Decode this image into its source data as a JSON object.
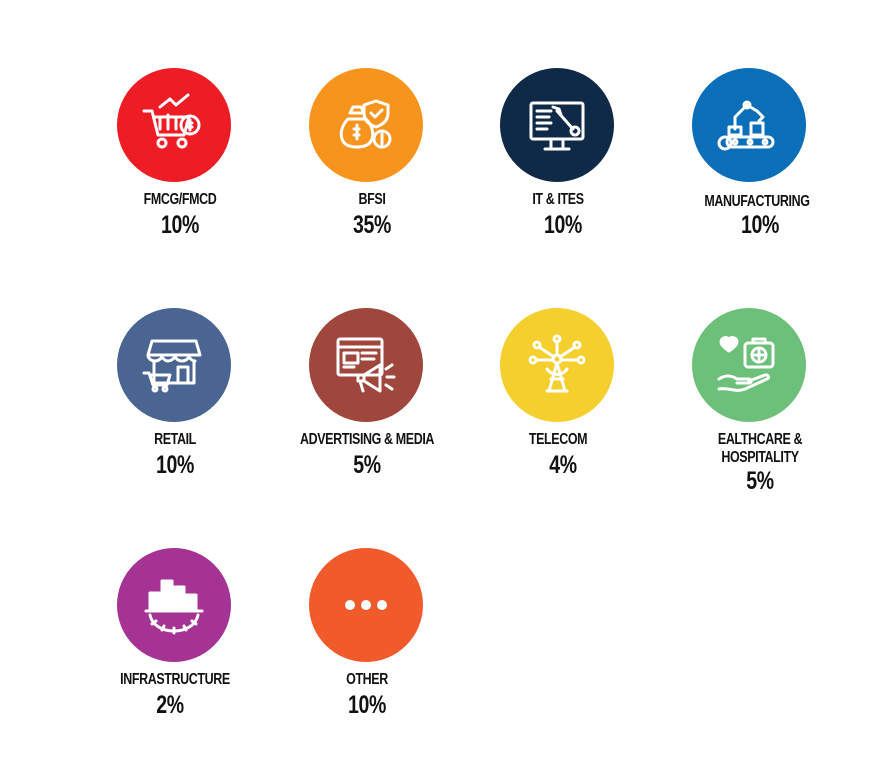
{
  "sectors": [
    {
      "name": "FMCG/FMCD",
      "value": "10%",
      "color": "#EE1C25",
      "icon": "shopping-cart-growth-icon"
    },
    {
      "name": "BFSI",
      "value": "35%",
      "color": "#F7941D",
      "icon": "money-bags-shield-icon"
    },
    {
      "name": "IT & ITES",
      "value": "10%",
      "color": "#0E2A47",
      "icon": "monitor-wrench-icon"
    },
    {
      "name": "MANUFACTURING",
      "value": "10%",
      "color": "#0A6FB8",
      "icon": "robot-arm-conveyor-icon"
    },
    {
      "name": "RETAIL",
      "value": "10%",
      "color": "#4A6592",
      "icon": "storefront-cart-icon"
    },
    {
      "name": "ADVERTISING & MEDIA",
      "value": "5%",
      "color": "#A0473D",
      "icon": "megaphone-browser-icon"
    },
    {
      "name": "TELECOM",
      "value": "4%",
      "color": "#F5CF2E",
      "icon": "network-tower-icon"
    },
    {
      "name": "EALTHCARE &",
      "name2": "HOSPITALITY",
      "value": "5%",
      "color": "#6CC07A",
      "icon": "medical-kit-hand-icon"
    },
    {
      "name": "INFRASTRUCTURE",
      "value": "2%",
      "color": "#A53393",
      "icon": "city-gear-icon"
    },
    {
      "name": "OTHER",
      "value": "10%",
      "color": "#F15A2B",
      "icon": "more-dots-icon"
    }
  ]
}
